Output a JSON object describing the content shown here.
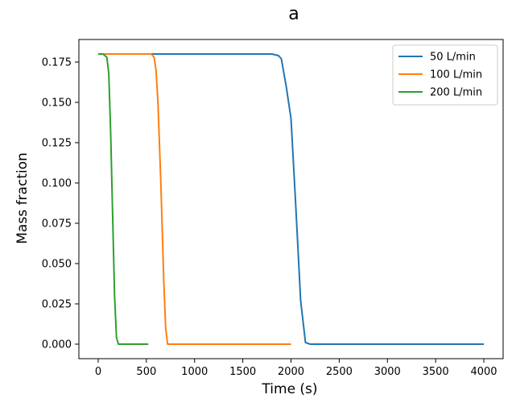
{
  "chart_data": {
    "type": "line",
    "title": "a",
    "xlabel": "Time (s)",
    "ylabel": "Mass fraction",
    "xlim": [
      -200,
      4200
    ],
    "ylim": [
      -0.009,
      0.189
    ],
    "xticks": [
      0,
      500,
      1000,
      1500,
      2000,
      2500,
      3000,
      3500,
      4000
    ],
    "xtick_labels": [
      "0",
      "500",
      "1000",
      "1500",
      "2000",
      "2500",
      "3000",
      "3500",
      "4000"
    ],
    "yticks": [
      0.0,
      0.025,
      0.05,
      0.075,
      0.1,
      0.125,
      0.15,
      0.175
    ],
    "ytick_labels": [
      "0.000",
      "0.025",
      "0.050",
      "0.075",
      "0.100",
      "0.125",
      "0.150",
      "0.175"
    ],
    "grid": false,
    "legend_position": "top-right",
    "series": [
      {
        "name": "50 L/min",
        "color": "#1f77b4",
        "x": [
          0,
          500,
          1000,
          1500,
          1800,
          1870,
          1900,
          1950,
          2000,
          2050,
          2100,
          2150,
          2200,
          2500,
          3000,
          3500,
          4000
        ],
        "y": [
          0.18,
          0.18,
          0.18,
          0.18,
          0.18,
          0.179,
          0.177,
          0.16,
          0.14,
          0.085,
          0.027,
          0.001,
          0.0,
          0.0,
          0.0,
          0.0,
          0.0
        ]
      },
      {
        "name": "100 L/min",
        "color": "#ff7f0e",
        "x": [
          0,
          300,
          550,
          580,
          600,
          620,
          650,
          680,
          700,
          720,
          800,
          1000,
          1500,
          2000
        ],
        "y": [
          0.18,
          0.18,
          0.18,
          0.178,
          0.17,
          0.15,
          0.1,
          0.04,
          0.01,
          0.0,
          0.0,
          0.0,
          0.0,
          0.0
        ]
      },
      {
        "name": "200 L/min",
        "color": "#2ca02c",
        "x": [
          0,
          50,
          90,
          110,
          130,
          150,
          170,
          190,
          210,
          300,
          400,
          520
        ],
        "y": [
          0.18,
          0.18,
          0.178,
          0.168,
          0.13,
          0.08,
          0.03,
          0.004,
          0.0,
          0.0,
          0.0,
          0.0
        ]
      }
    ]
  }
}
